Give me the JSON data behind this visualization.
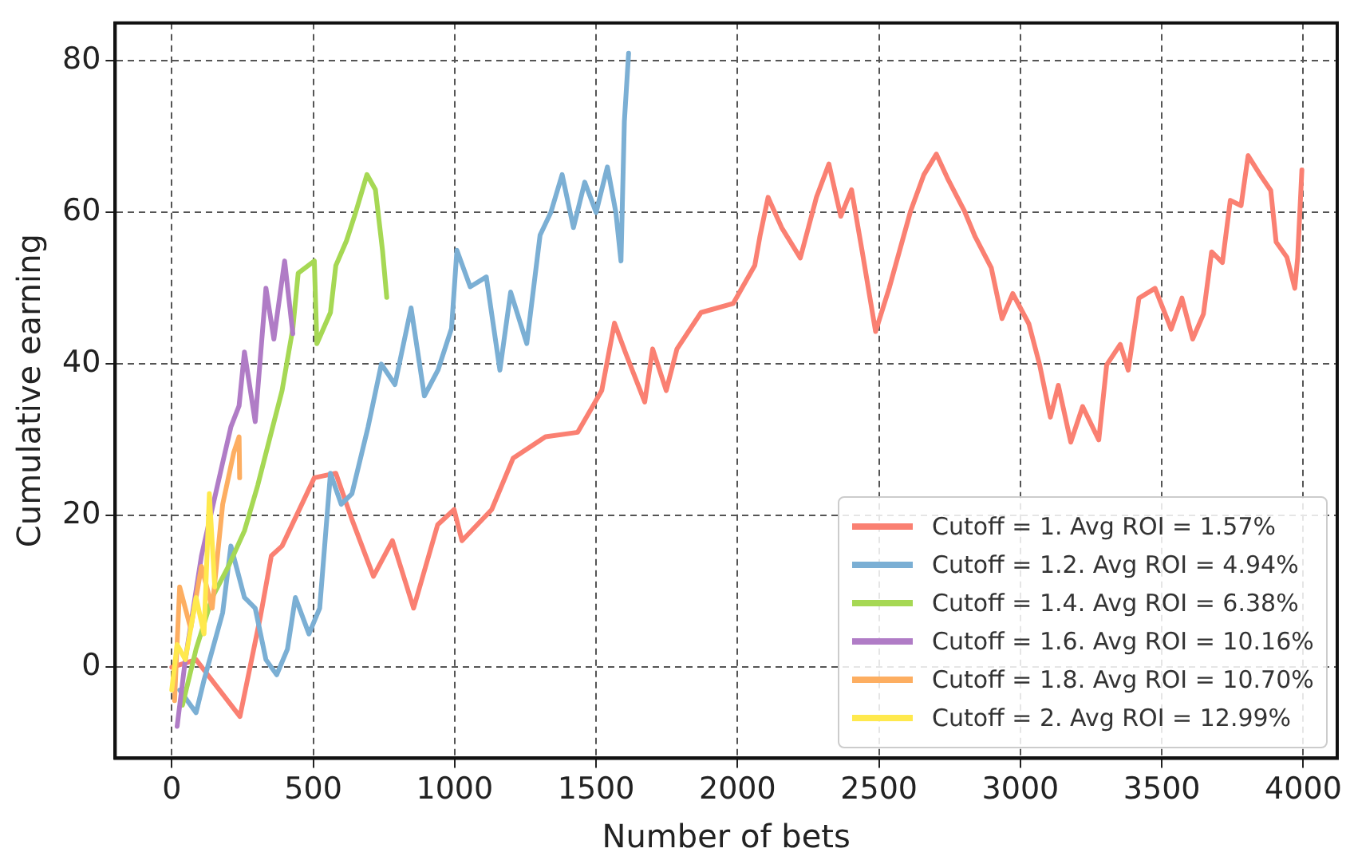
{
  "chart_data": {
    "type": "line",
    "xlabel": "Number of bets",
    "ylabel": "Cumulative earning",
    "xlim": [
      -200,
      4120
    ],
    "ylim": [
      -12,
      85
    ],
    "xticks": [
      0,
      500,
      1000,
      1500,
      2000,
      2500,
      3000,
      3500,
      4000
    ],
    "yticks": [
      0,
      20,
      40,
      60,
      80
    ],
    "grid": true,
    "legend": "bottom right",
    "marker": "none",
    "line_style": "solid",
    "series": [
      {
        "name": "Cutoff = 1. Avg ROI = 1.57%",
        "color": "#fa8072",
        "x": [
          0,
          86,
          241,
          314,
          352,
          390,
          504,
          580,
          637,
          713,
          780,
          855,
          940,
          998,
          1026,
          1131,
          1207,
          1321,
          1435,
          1520,
          1565,
          1606,
          1672,
          1700,
          1748,
          1786,
          1871,
          1985,
          2061,
          2080,
          2108,
          2156,
          2222,
          2279,
          2323,
          2365,
          2403,
          2441,
          2488,
          2536,
          2612,
          2659,
          2703,
          2745,
          2802,
          2840,
          2897,
          2935,
          2973,
          3030,
          3068,
          3106,
          3134,
          3178,
          3220,
          3277,
          3305,
          3353,
          3381,
          3419,
          3476,
          3533,
          3571,
          3609,
          3647,
          3676,
          3714,
          3742,
          3780,
          3805,
          3847,
          3885,
          3904,
          3942,
          3970,
          3980,
          3995
        ],
        "values": [
          0,
          1,
          -6.5,
          6.8,
          14.7,
          16,
          25,
          25.6,
          19.5,
          12,
          16.7,
          7.8,
          18.8,
          20.8,
          16.7,
          20.8,
          27.6,
          30.4,
          31,
          36.5,
          45.4,
          41.3,
          35,
          42,
          36.5,
          42,
          46.8,
          48,
          53,
          57,
          62,
          58,
          54,
          62,
          66.4,
          59.5,
          63,
          54.8,
          44.3,
          50,
          60.2,
          65,
          67.7,
          64.3,
          60.2,
          56.8,
          52.7,
          46,
          49.3,
          45.3,
          39.9,
          33,
          37.2,
          29.7,
          34.4,
          30,
          39.9,
          42.6,
          39.2,
          48.7,
          50,
          44.6,
          48.7,
          43.3,
          46.6,
          54.8,
          53.4,
          61.6,
          60.9,
          67.5,
          65,
          62.9,
          56.1,
          54.1,
          50,
          54,
          65.6
        ]
      },
      {
        "name": "Cutoff = 1.2. Avg ROI = 4.94%",
        "color": "#7bafd4",
        "x": [
          28,
          86,
          114,
          180,
          209,
          257,
          295,
          333,
          371,
          409,
          437,
          485,
          523,
          561,
          599,
          637,
          694,
          741,
          789,
          846,
          893,
          941,
          989,
          1008,
          1055,
          1112,
          1160,
          1198,
          1255,
          1302,
          1340,
          1380,
          1420,
          1460,
          1500,
          1540,
          1570,
          1588,
          1600,
          1615
        ],
        "values": [
          -3,
          -6,
          -1.7,
          7.2,
          16,
          9.2,
          7.8,
          1,
          -1,
          2.4,
          9.2,
          4.4,
          7.8,
          25.6,
          21.5,
          22.9,
          31.7,
          40,
          37.3,
          47.4,
          35.8,
          39.2,
          44.7,
          55,
          50.2,
          51.5,
          39.2,
          49.5,
          42.7,
          57,
          60,
          65,
          58,
          64,
          60,
          66,
          60,
          53.6,
          72,
          81
        ]
      },
      {
        "name": "Cutoff = 1.4. Avg ROI = 6.38%",
        "color": "#a6d854",
        "x": [
          38,
          86,
          143,
          200,
          257,
          304,
          352,
          390,
          428,
          447,
          504,
          513,
          561,
          580,
          618,
          650,
          690,
          720,
          745,
          760
        ],
        "values": [
          -5,
          2.4,
          9.2,
          13.3,
          18,
          24,
          31,
          36.5,
          44.7,
          52,
          53.6,
          42.7,
          46.8,
          53,
          56.3,
          60,
          65,
          63,
          55,
          48.8
        ]
      },
      {
        "name": "Cutoff = 1.6. Avg ROI = 10.16%",
        "color": "#b07cc6",
        "x": [
          19,
          48,
          105,
          180,
          209,
          238,
          257,
          295,
          333,
          361,
          399,
          428
        ],
        "values": [
          -7.8,
          1,
          14.7,
          27,
          31.7,
          34.5,
          41.6,
          32.4,
          50,
          43.3,
          53.6,
          44
        ]
      },
      {
        "name": "Cutoff = 1.8. Avg ROI = 10.70%",
        "color": "#fdae61",
        "x": [
          10,
          28,
          67,
          105,
          143,
          180,
          219,
          238,
          240
        ],
        "values": [
          -4.4,
          10.6,
          5.1,
          13.3,
          7.8,
          21.5,
          28.3,
          30.4,
          25
        ]
      },
      {
        "name": "Cutoff = 2. Avg ROI = 12.99%",
        "color": "#ffe94d",
        "x": [
          0,
          19,
          48,
          86,
          114,
          133,
          152
        ],
        "values": [
          -3,
          3,
          1,
          9.2,
          4.4,
          22.9,
          10.6
        ]
      }
    ]
  }
}
